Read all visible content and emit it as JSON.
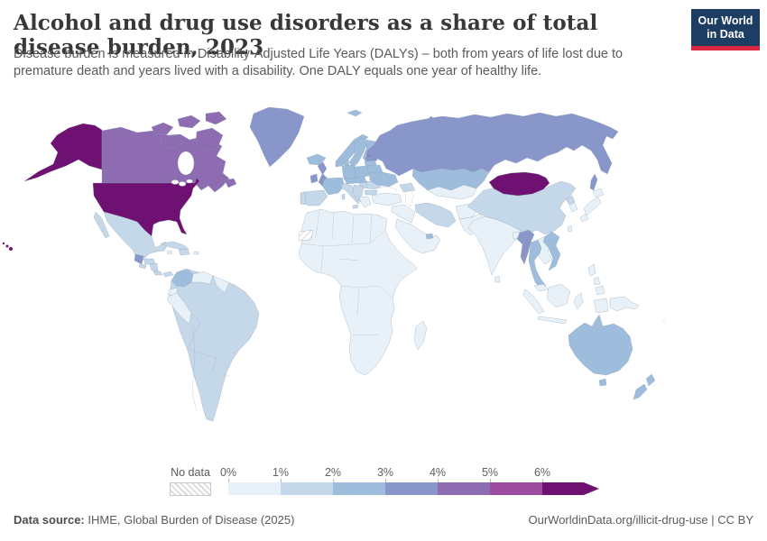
{
  "header": {
    "title": "Alcohol and drug use disorders as a share of total disease burden, 2023",
    "subtitle_line1": "Disease burden is measured in Disability-Adjusted Life Years (DALYs) – both from years of life lost due to",
    "subtitle_line2": "premature death and years lived with a disability. One DALY equals one year of healthy life.",
    "logo": {
      "line1": "Our World",
      "line2": "in Data",
      "bg": "#1d3d63",
      "accent": "#dc2740"
    }
  },
  "legend": {
    "no_data_label": "No data",
    "tick_labels": [
      "0%",
      "1%",
      "2%",
      "3%",
      "4%",
      "5%",
      "6%"
    ],
    "band_order": [
      "0-1",
      "1-2",
      "2-3",
      "3-4",
      "4-5",
      "5-6",
      "6+"
    ]
  },
  "footer": {
    "source_label": "Data source:",
    "source_text": " IHME, Global Burden of Disease (2025)",
    "right_text": "OurWorldinData.org/illicit-drug-use | CC BY"
  },
  "chart_data": {
    "type": "choropleth_map",
    "title": "Alcohol and drug use disorders as a share of total disease burden, 2023",
    "unit": "share of total DALYs (%)",
    "legend_bins": [
      "0%",
      "1%",
      "2%",
      "3%",
      "4%",
      "5%",
      "6%+"
    ],
    "band_colors": {
      "0-1": "#e7f1f7",
      "1-2": "#c4d8ea",
      "2-3": "#9ebddc",
      "3-4": "#8896c9",
      "4-5": "#8d6cb1",
      "5-6": "#9c4da0",
      "6+": "#6f1172"
    },
    "no_data": {
      "label": "No data",
      "countries": [
        "Western Sahara"
      ]
    },
    "countries": {
      "United States": "6+",
      "Mongolia": "6+",
      "Canada": "4-5",
      "Estonia": "4-5",
      "Greenland": "3-4",
      "Russia": "3-4",
      "United Kingdom": "3-4",
      "Ireland": "3-4",
      "Guatemala": "3-4",
      "Myanmar": "3-4",
      "Latvia": "3-4",
      "Australia": "2-3",
      "New Zealand": "2-3",
      "Iceland": "2-3",
      "Norway": "2-3",
      "Sweden": "2-3",
      "Finland": "2-3",
      "Denmark": "2-3",
      "Germany": "2-3",
      "France": "2-3",
      "Poland": "2-3",
      "Czechia": "2-3",
      "Lithuania": "2-3",
      "Belarus": "2-3",
      "Ukraine": "2-3",
      "Kazakhstan": "2-3",
      "Colombia": "2-3",
      "Thailand": "2-3",
      "Vietnam": "2-3",
      "United Arab Emirates": "2-3",
      "Spain": "1-2",
      "Portugal": "1-2",
      "Italy": "1-2",
      "Hungary": "1-2",
      "Romania": "1-2",
      "Bulgaria": "1-2",
      "Serbia": "1-2",
      "Mexico": "1-2",
      "Cuba": "1-2",
      "Dominican Republic": "1-2",
      "Haiti": "1-2",
      "Honduras": "1-2",
      "El Salvador": "1-2",
      "Nicaragua": "1-2",
      "Costa Rica": "1-2",
      "Panama": "1-2",
      "Brazil": "1-2",
      "Argentina": "1-2",
      "Chile": "1-2",
      "Bolivia": "1-2",
      "Paraguay": "1-2",
      "Uruguay": "1-2",
      "China": "1-2",
      "Iran": "1-2",
      "North Korea": "1-2",
      "Georgia": "1-2",
      "Greece": "0-1",
      "Turkey": "0-1",
      "Iraq": "0-1",
      "Saudi Arabia": "0-1",
      "Uzbekistan": "0-1",
      "Afghanistan": "0-1",
      "Pakistan": "0-1",
      "India": "0-1",
      "Sri Lanka": "0-1",
      "Bangladesh": "0-1",
      "Japan": "0-1",
      "South Korea": "0-1",
      "Taiwan": "0-1",
      "Cambodia": "0-1",
      "Malaysia": "0-1",
      "Indonesia": "0-1",
      "Philippines": "0-1",
      "Papua New Guinea": "0-1",
      "Venezuela": "0-1",
      "Peru": "0-1",
      "Ecuador": "0-1",
      "Guyana": "0-1",
      "Jamaica": "0-1",
      "Puerto Rico": "0-1",
      "Madagascar": "0-1",
      "South Africa": "0-1",
      "Egypt": "0-1",
      "Nigeria": "0-1",
      "Ethiopia": "0-1",
      "Kenya": "0-1",
      "Democratic Republic of Congo": "0-1",
      "Algeria": "0-1",
      "Morocco": "0-1",
      "Libya": "0-1",
      "Sudan": "0-1",
      "Fiji": "0-1",
      "Western Sahara": "no-data"
    }
  }
}
